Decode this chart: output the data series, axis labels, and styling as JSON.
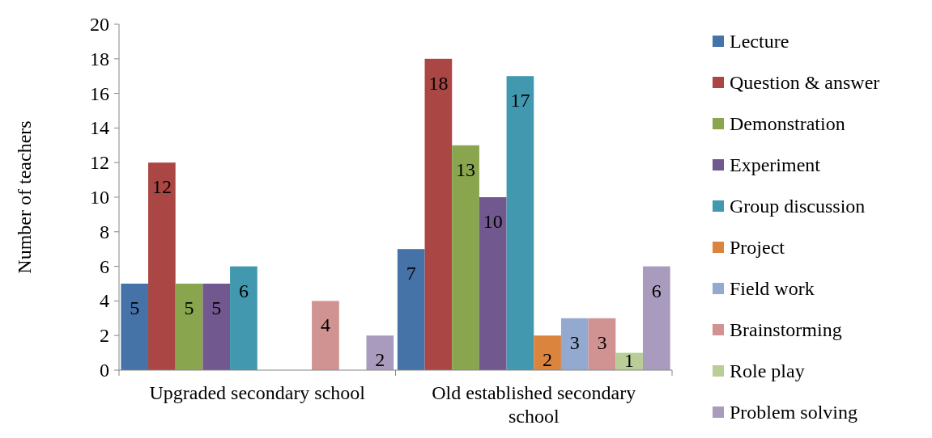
{
  "chart_data": {
    "type": "bar",
    "ylabel": "Number of teachers",
    "categories": [
      "Upgraded secondary school",
      "Old established secondary school"
    ],
    "series": [
      {
        "name": "Lecture",
        "color": "#4572a7",
        "values": [
          5,
          7
        ]
      },
      {
        "name": "Question & answer",
        "color": "#aa4643",
        "values": [
          12,
          18
        ]
      },
      {
        "name": "Demonstration",
        "color": "#89a54e",
        "values": [
          5,
          13
        ]
      },
      {
        "name": "Experiment",
        "color": "#71588f",
        "values": [
          5,
          10
        ]
      },
      {
        "name": "Group discussion",
        "color": "#4198af",
        "values": [
          6,
          17
        ]
      },
      {
        "name": "Project",
        "color": "#db843d",
        "values": [
          null,
          2
        ]
      },
      {
        "name": "Field work",
        "color": "#93a9cf",
        "values": [
          null,
          3
        ]
      },
      {
        "name": "Brainstorming",
        "color": "#d19392",
        "values": [
          4,
          3
        ]
      },
      {
        "name": "Role play",
        "color": "#b9cd96",
        "values": [
          null,
          1
        ]
      },
      {
        "name": "Problem solving",
        "color": "#a99bbd",
        "values": [
          2,
          6
        ]
      }
    ],
    "ylim": [
      0,
      20
    ],
    "yticks": [
      0,
      2,
      4,
      6,
      8,
      10,
      12,
      14,
      16,
      18,
      20
    ],
    "data_labels": true,
    "legend": "right",
    "grid": false
  }
}
